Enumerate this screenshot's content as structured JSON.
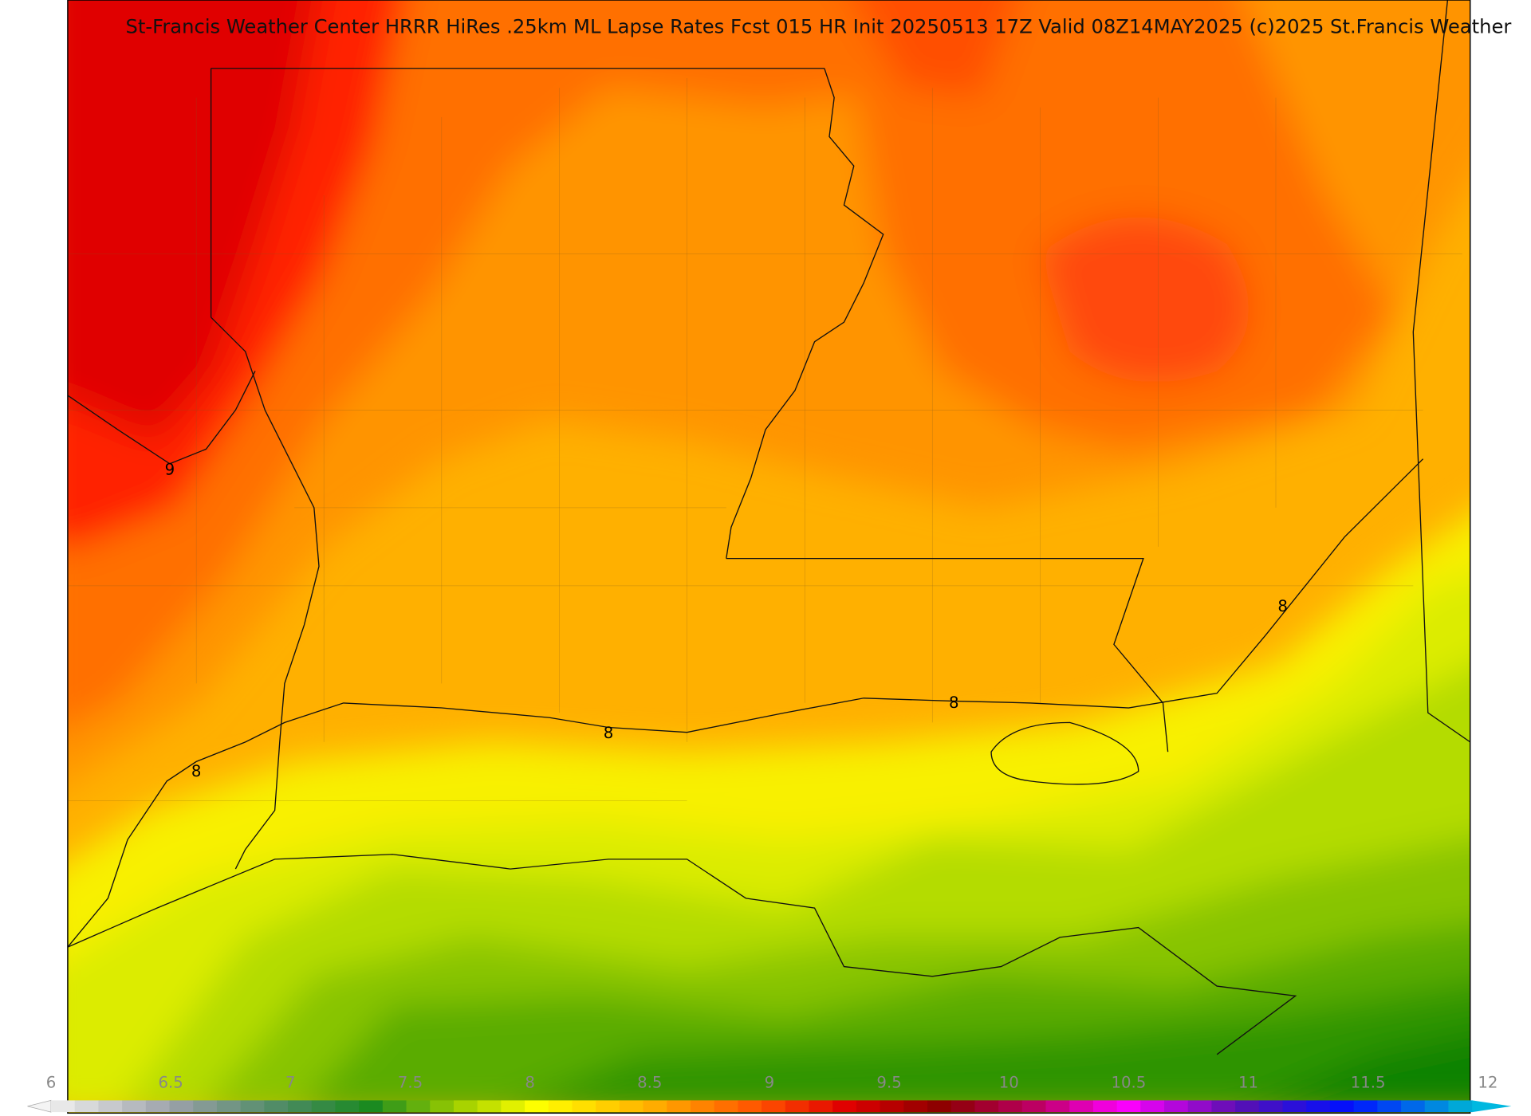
{
  "header": {
    "title": "St-Francis Weather Center HRRR HiRes .25km ML Lapse Rates  Fcst 015 HR Init 20250513 17Z  Valid 08Z14MAY2025    (c)2025 St.Francis Weather"
  },
  "contour_labels": [
    9,
    8,
    8,
    8,
    8
  ],
  "colorbar": {
    "ticks": [
      6,
      6.5,
      7,
      7.5,
      8,
      8.5,
      9,
      9.5,
      10,
      10.5,
      11,
      11.5,
      12
    ]
  }
}
